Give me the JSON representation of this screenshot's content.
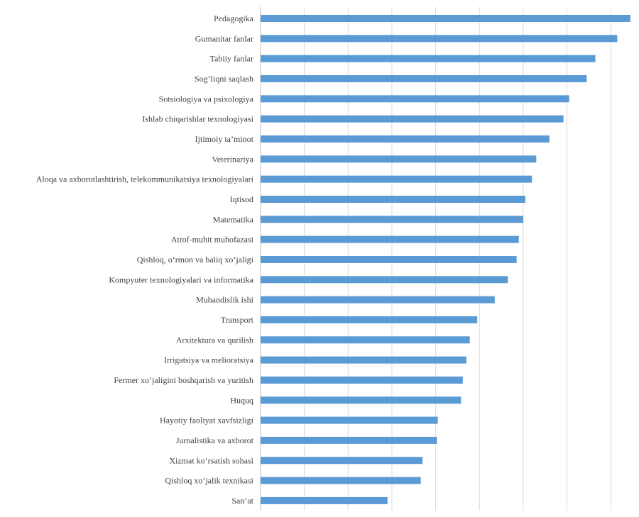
{
  "chart_data": {
    "type": "bar",
    "orientation": "horizontal",
    "categories": [
      "Pedagogika",
      "Gumanitar fanlar",
      "Tabiiy fanlar",
      "Sog‘liqni saqlash",
      "Sotsiologiya va psixologiya",
      "Ishlab chiqarishlar texnologiyasi",
      "Ijtimoiy ta’minot",
      "Veterinariya",
      "Aloqa va axborotlashtirish, telekommunikatsiya texnologiyalari",
      "Iqtisod",
      "Matematika",
      "Atrof-muhit muhofazasi",
      "Qishloq, o‘rmon va baliq xo‘jaligi",
      "Kompyuter texnologiyalari va informatika",
      "Muhandislik ishi",
      "Transport",
      "Arxitektura va qurilish",
      "Irrigatsiya va melioratsiya",
      "Fermer xo‘jaligini boshqarish va yuritish",
      "Huquq",
      "Hayotiy faoliyat xavfsizligi",
      "Jurnalistika va axborot",
      "Xizmat ko‘rsatish sohasi",
      "Qishloq xo‘jalik texnikasi",
      "San’at"
    ],
    "values": [
      84.5,
      81.5,
      76.5,
      74.5,
      70.5,
      69.2,
      66.0,
      63.0,
      62.0,
      60.5,
      60.0,
      59.0,
      58.5,
      56.5,
      53.5,
      49.5,
      47.8,
      47.0,
      46.2,
      45.8,
      40.5,
      40.3,
      37.0,
      36.6,
      29.0
    ],
    "xlim": [
      0,
      85
    ],
    "grid": true,
    "title": "",
    "xlabel": "",
    "ylabel": "",
    "bar_color": "#5b9bd5",
    "grid_color": "#d9d9d9"
  }
}
